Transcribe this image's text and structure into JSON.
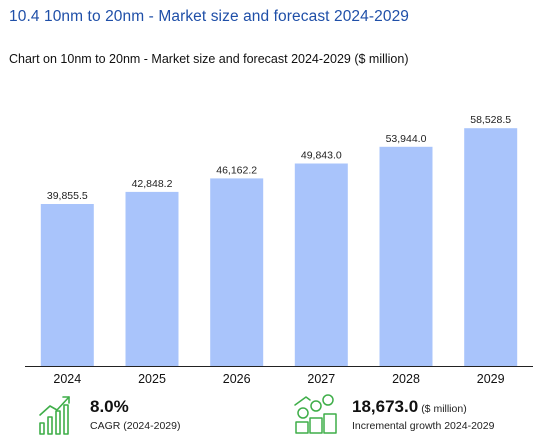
{
  "heading": "10.4 10nm to 20nm - Market size and forecast 2024-2029",
  "subheading": "Chart on 10nm to 20nm - Market size and forecast 2024-2029 ($ million)",
  "colors": {
    "bar": "#a9c4fb",
    "heading": "#1f4fa8",
    "icon_green": "#3fae49"
  },
  "chart_data": {
    "type": "bar",
    "title": "Chart on 10nm to 20nm - Market size and forecast 2024-2029 ($ million)",
    "categories": [
      "2024",
      "2025",
      "2026",
      "2027",
      "2028",
      "2029"
    ],
    "values": [
      39855.5,
      42848.2,
      46162.2,
      49843.0,
      53944.0,
      58528.5
    ],
    "value_labels": [
      "39,855.5",
      "42,848.2",
      "46,162.2",
      "49,843.0",
      "53,944.0",
      "58,528.5"
    ],
    "ylim": [
      0,
      63000
    ],
    "grid": false,
    "legend": "none"
  },
  "stats": {
    "cagr": {
      "value": "8.0%",
      "caption": "CAGR (2024-2029)",
      "icon": "growth-chart-icon"
    },
    "incremental": {
      "value": "18,673.0",
      "unit": "($ million)",
      "caption": "Incremental growth 2024-2029",
      "icon": "money-growth-icon"
    }
  }
}
